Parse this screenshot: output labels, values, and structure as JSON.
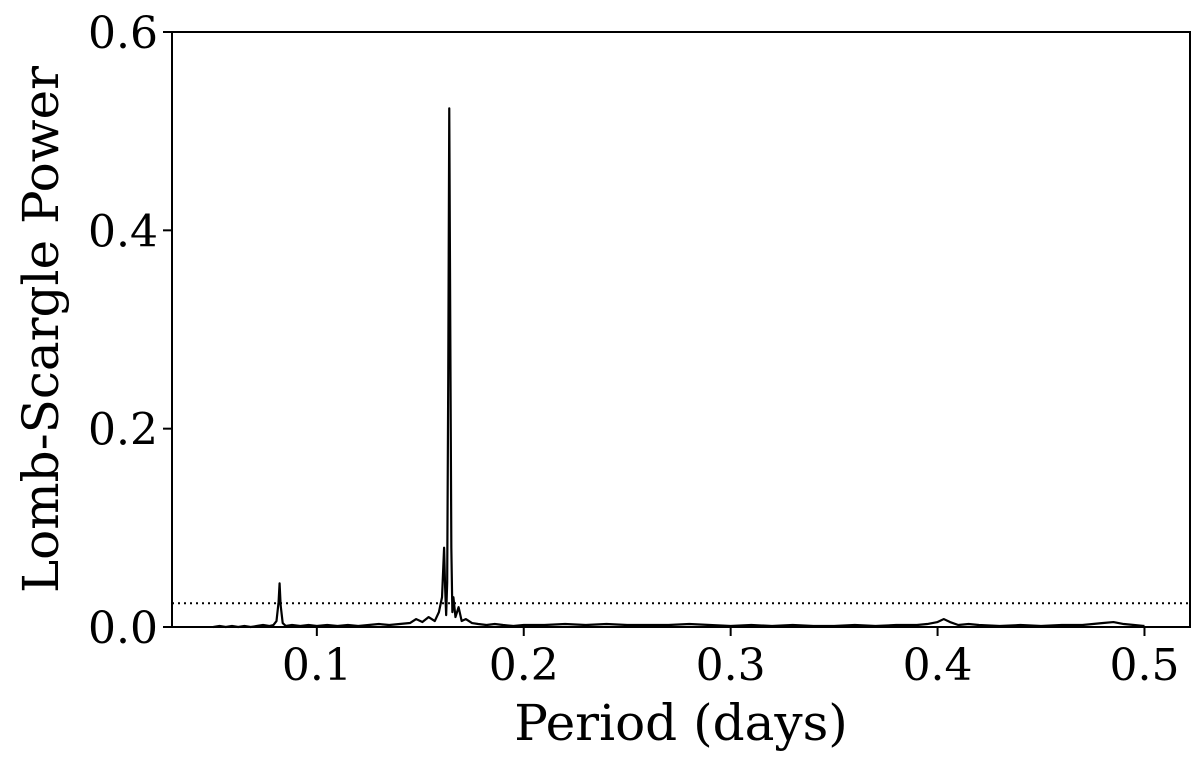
{
  "chart_data": {
    "type": "line",
    "title": "",
    "xlabel": "Period (days)",
    "ylabel": "Lomb-Scargle Power",
    "xlim": [
      0.03,
      0.522
    ],
    "ylim": [
      0.0,
      0.6
    ],
    "xticks": [
      0.1,
      0.2,
      0.3,
      0.4,
      0.5
    ],
    "xtick_labels": [
      "0.1",
      "0.2",
      "0.3",
      "0.4",
      "0.5"
    ],
    "yticks": [
      0.0,
      0.2,
      0.4,
      0.6
    ],
    "ytick_labels": [
      "0.0",
      "0.2",
      "0.4",
      "0.6"
    ],
    "grid": false,
    "threshold": 0.024,
    "series": [
      {
        "color": "#000000",
        "x": [
          0.05,
          0.053,
          0.056,
          0.059,
          0.062,
          0.065,
          0.068,
          0.071,
          0.074,
          0.077,
          0.079,
          0.0805,
          0.0815,
          0.082,
          0.0825,
          0.0835,
          0.085,
          0.088,
          0.092,
          0.096,
          0.1,
          0.105,
          0.11,
          0.115,
          0.12,
          0.125,
          0.13,
          0.135,
          0.14,
          0.145,
          0.148,
          0.151,
          0.154,
          0.157,
          0.159,
          0.1605,
          0.1615,
          0.162,
          0.1625,
          0.163,
          0.1635,
          0.164,
          0.1645,
          0.165,
          0.1655,
          0.166,
          0.167,
          0.1685,
          0.17,
          0.172,
          0.175,
          0.178,
          0.182,
          0.186,
          0.19,
          0.195,
          0.2,
          0.21,
          0.22,
          0.23,
          0.24,
          0.25,
          0.26,
          0.27,
          0.28,
          0.29,
          0.3,
          0.31,
          0.32,
          0.33,
          0.34,
          0.35,
          0.36,
          0.37,
          0.38,
          0.39,
          0.395,
          0.4,
          0.403,
          0.406,
          0.41,
          0.415,
          0.42,
          0.43,
          0.44,
          0.45,
          0.46,
          0.47,
          0.475,
          0.48,
          0.485,
          0.49,
          0.495,
          0.5
        ],
        "y": [
          0.0,
          0.001,
          0.0,
          0.001,
          0.0,
          0.001,
          0.0,
          0.001,
          0.002,
          0.001,
          0.002,
          0.006,
          0.025,
          0.044,
          0.022,
          0.004,
          0.001,
          0.002,
          0.001,
          0.002,
          0.001,
          0.002,
          0.001,
          0.002,
          0.001,
          0.002,
          0.003,
          0.002,
          0.003,
          0.004,
          0.008,
          0.005,
          0.01,
          0.006,
          0.015,
          0.03,
          0.08,
          0.04,
          0.012,
          0.045,
          0.25,
          0.523,
          0.3,
          0.08,
          0.015,
          0.03,
          0.01,
          0.02,
          0.006,
          0.008,
          0.004,
          0.003,
          0.002,
          0.003,
          0.002,
          0.001,
          0.002,
          0.002,
          0.003,
          0.002,
          0.003,
          0.002,
          0.002,
          0.002,
          0.003,
          0.002,
          0.001,
          0.002,
          0.001,
          0.002,
          0.001,
          0.001,
          0.002,
          0.001,
          0.002,
          0.002,
          0.003,
          0.005,
          0.008,
          0.005,
          0.002,
          0.003,
          0.002,
          0.001,
          0.002,
          0.001,
          0.002,
          0.002,
          0.003,
          0.004,
          0.005,
          0.003,
          0.002,
          0.001
        ]
      }
    ]
  }
}
